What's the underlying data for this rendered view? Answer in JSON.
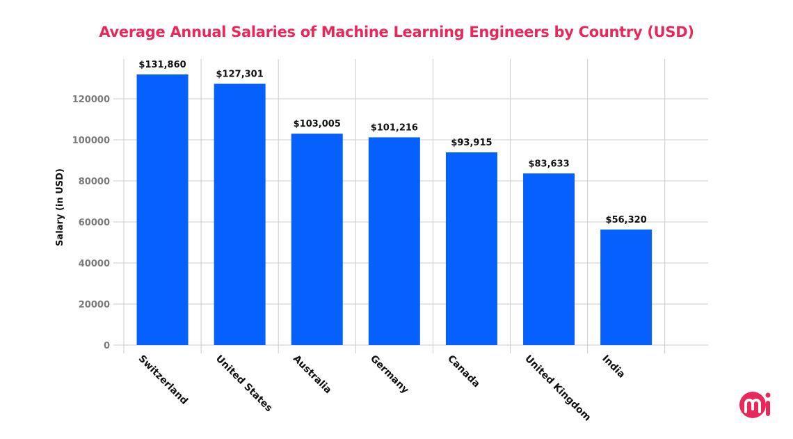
{
  "chart_data": {
    "type": "bar",
    "title": "Average Annual Salaries of Machine Learning Engineers by Country (USD)",
    "xlabel": "",
    "ylabel": "Salary (in USD)",
    "categories": [
      "Switzerland",
      "United States",
      "Australia",
      "Germany",
      "Canada",
      "United Kingdom",
      "India"
    ],
    "values": [
      131860,
      127301,
      103005,
      101216,
      93915,
      83633,
      56320
    ],
    "data_labels": [
      "$131,860",
      "$127,301",
      "$103,005",
      "$101,216",
      "$93,915",
      "$83,633",
      "$56,320"
    ],
    "yticks": [
      0,
      20000,
      40000,
      60000,
      80000,
      100000,
      120000
    ],
    "ylim": [
      0,
      140000
    ],
    "grid": true,
    "bar_color": "#0560fd",
    "title_color": "#e8285a"
  },
  "logo": {
    "text": "mi",
    "color": "#e8285a"
  }
}
